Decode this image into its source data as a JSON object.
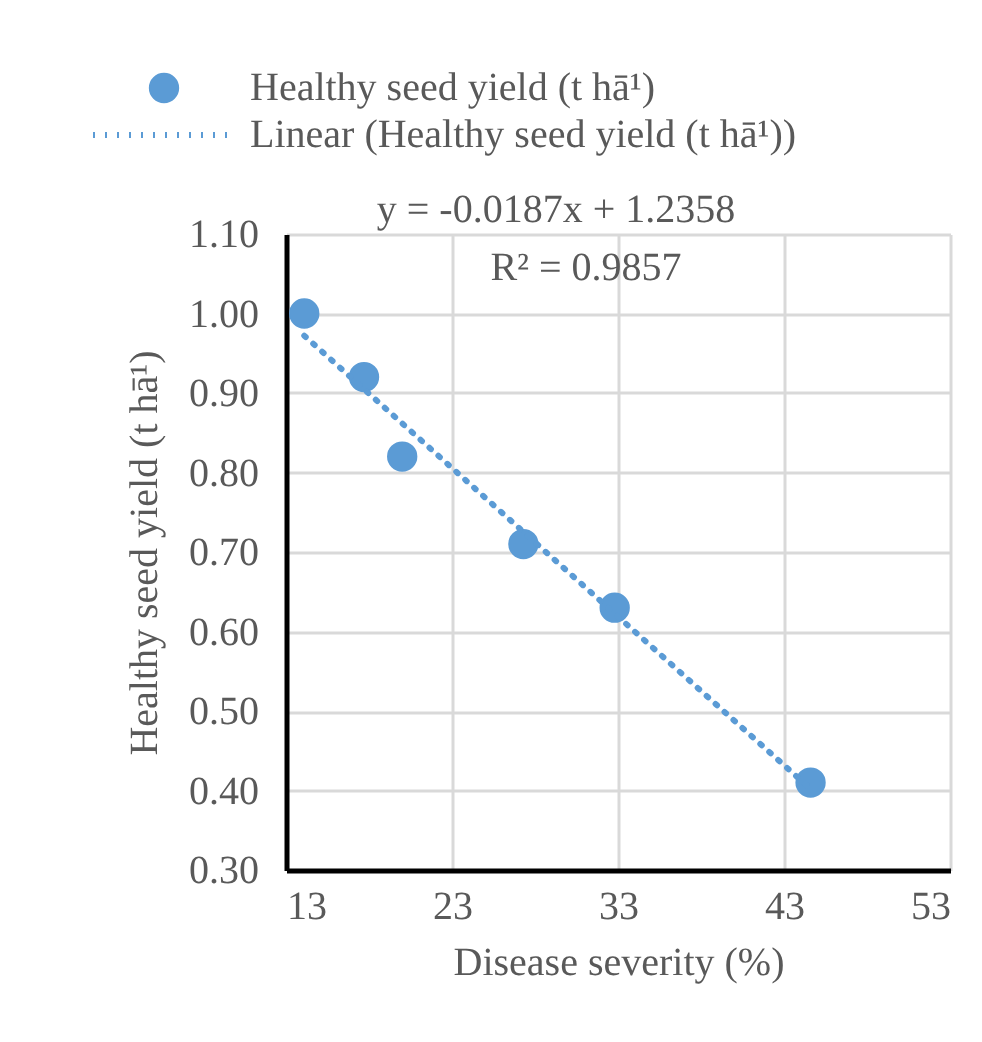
{
  "chart_data": {
    "type": "scatter",
    "xlabel": "Disease severity (%)",
    "ylabel": "Healthy seed yield (t hā¹)",
    "series": [
      {
        "name": "Healthy seed yield (t hā¹)",
        "color": "#5b9bd5",
        "x": [
          14.1,
          17.7,
          20.0,
          27.3,
          32.8,
          44.6
        ],
        "values": [
          1.0,
          0.92,
          0.82,
          0.71,
          0.63,
          0.41
        ]
      },
      {
        "name": "Linear (Healthy seed yield (t hā¹))",
        "type": "line",
        "line_style": "dotted",
        "marker": "none",
        "color": "#5b9bd5",
        "x": [
          14.1,
          44.6
        ],
        "values": [
          0.972,
          0.402
        ]
      }
    ],
    "annotations": [
      "y = -0.0187x + 1.2358",
      "R² = 0.9857"
    ],
    "xlim": [
      13,
      53
    ],
    "xticks": [
      13,
      23,
      33,
      43,
      53
    ],
    "ylim": [
      0.3,
      1.1
    ],
    "yticks": [
      {
        "value": 0.3,
        "label": "0.30"
      },
      {
        "value": 0.4,
        "label": "0.40"
      },
      {
        "value": 0.5,
        "label": "0.50"
      },
      {
        "value": 0.6,
        "label": "0.60"
      },
      {
        "value": 0.7,
        "label": "0.70"
      },
      {
        "value": 0.8,
        "label": "0.80"
      },
      {
        "value": 0.9,
        "label": "0.90"
      },
      {
        "value": 1.0,
        "label": "1.00"
      },
      {
        "value": 1.1,
        "label": "1.10"
      }
    ],
    "grid": true,
    "marker": "circle",
    "legend": "top"
  }
}
